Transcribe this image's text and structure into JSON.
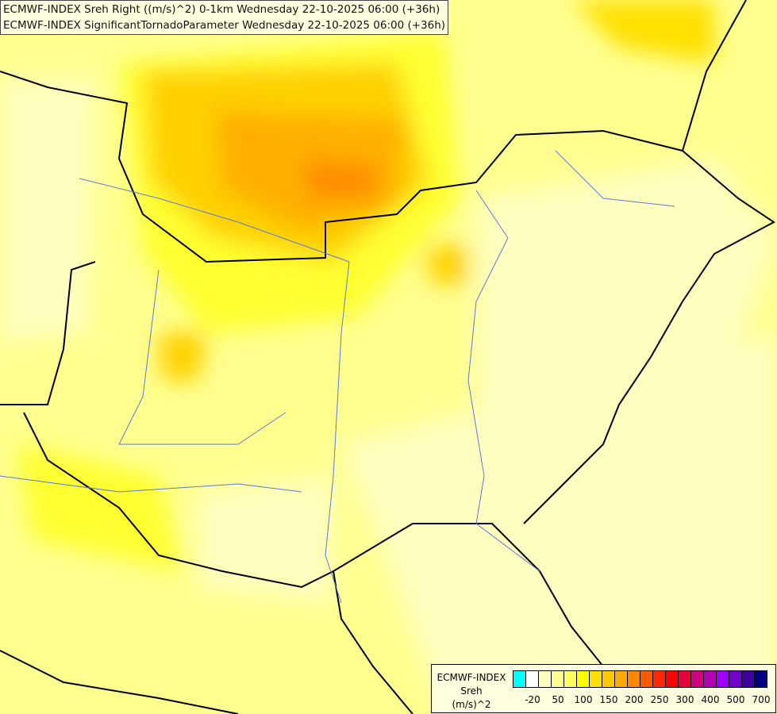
{
  "titles": [
    "ECMWF-INDEX Sreh Right ((m/s)^2) 0-1km Wednesday 22-10-2025 06:00 (+36h)",
    "ECMWF-INDEX SignificantTornadoParameter Wednesday 22-10-2025 06:00 (+36h)"
  ],
  "legend": {
    "line1": "ECMWF-INDEX",
    "line2": "Sreh",
    "line3": "(m/s)^2",
    "colors": [
      "#00ffff",
      "#ffffff",
      "#ffffc0",
      "#ffff90",
      "#ffff60",
      "#ffff00",
      "#ffe000",
      "#ffc800",
      "#ffaa00",
      "#ff8800",
      "#ff5a00",
      "#ff2800",
      "#ff0000",
      "#e8003c",
      "#d00080",
      "#b400b4",
      "#a000ff",
      "#7000d0",
      "#4000a0",
      "#000080"
    ],
    "labels": [
      "-20",
      "50",
      "100",
      "150",
      "200",
      "250",
      "300",
      "400",
      "500",
      "700"
    ]
  }
}
